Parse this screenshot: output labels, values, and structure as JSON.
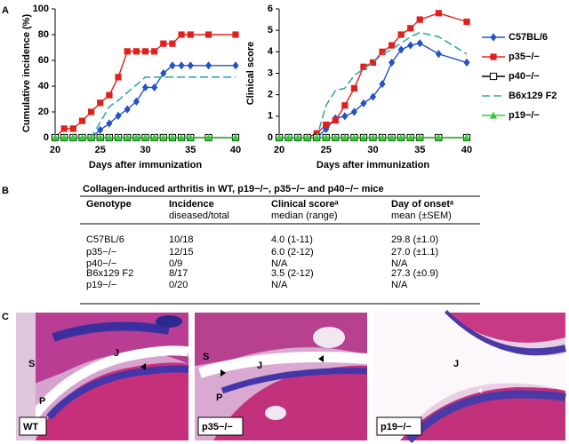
{
  "chart_data": [
    {
      "type": "line",
      "ylabel": "Cumulative incidence (%)",
      "xlabel": "Days after immunization",
      "x": [
        20,
        21,
        22,
        23,
        24,
        25,
        26,
        27,
        28,
        29,
        30,
        31,
        32,
        33,
        34,
        35,
        37,
        40
      ],
      "xlim": [
        20,
        40
      ],
      "xticks": [
        20,
        25,
        30,
        35,
        40
      ],
      "ylim": [
        0,
        100
      ],
      "yticks": [
        0,
        20,
        40,
        60,
        80,
        100
      ],
      "series": [
        {
          "name": "C57BL/6",
          "color": "#2452c8",
          "marker": "diamond",
          "values": [
            0,
            0,
            0,
            0,
            0,
            6,
            11,
            17,
            22,
            28,
            39,
            39,
            50,
            56,
            56,
            56,
            56,
            56
          ]
        },
        {
          "name": "p35−/−",
          "color": "#e0201b",
          "marker": "square",
          "values": [
            0,
            7,
            7,
            13,
            20,
            27,
            33,
            47,
            67,
            67,
            67,
            67,
            73,
            73,
            80,
            80,
            80,
            80
          ]
        },
        {
          "name": "p40−/−",
          "color": "#000000",
          "marker": "open-square",
          "values": [
            0,
            0,
            0,
            0,
            0,
            0,
            0,
            0,
            0,
            0,
            0,
            0,
            0,
            0,
            0,
            0,
            0,
            0
          ]
        },
        {
          "name": "B6x129 F2",
          "color": "#3aa6a6",
          "dash": true,
          "values": [
            0,
            0,
            0,
            0,
            0,
            12,
            24,
            29,
            35,
            41,
            47,
            47,
            47,
            47,
            47,
            47,
            47,
            47
          ]
        },
        {
          "name": "p19−/−",
          "color": "#33cc33",
          "marker": "triangle",
          "values": [
            0,
            0,
            0,
            0,
            0,
            0,
            0,
            0,
            0,
            0,
            0,
            0,
            0,
            0,
            0,
            0,
            0,
            0
          ]
        }
      ]
    },
    {
      "type": "line",
      "ylabel": "Clinical score",
      "xlabel": "Days after immunization",
      "x": [
        20,
        21,
        22,
        23,
        24,
        25,
        26,
        27,
        28,
        29,
        30,
        31,
        32,
        33,
        34,
        35,
        37,
        40
      ],
      "xlim": [
        20,
        40
      ],
      "xticks": [
        20,
        25,
        30,
        35,
        40
      ],
      "ylim": [
        0,
        6
      ],
      "yticks": [
        0,
        1,
        2,
        3,
        4,
        5,
        6
      ],
      "series": [
        {
          "color": "#2452c8",
          "marker": "diamond",
          "values": [
            0,
            0,
            0,
            0,
            0,
            0.4,
            0.9,
            1.0,
            1.2,
            1.6,
            1.9,
            2.5,
            3.5,
            4.1,
            4.3,
            4.4,
            3.9,
            3.5
          ]
        },
        {
          "color": "#e0201b",
          "marker": "square",
          "values": [
            0,
            0,
            0,
            0,
            0.2,
            0.6,
            0.8,
            1.5,
            2.3,
            3.3,
            3.5,
            4.0,
            4.3,
            4.8,
            5.1,
            5.5,
            5.8,
            5.4
          ]
        },
        {
          "color": "#000000",
          "marker": "open-square",
          "values": [
            0,
            0,
            0,
            0,
            0,
            0,
            0,
            0,
            0,
            0,
            0,
            0,
            0,
            0,
            0,
            0,
            0,
            0
          ]
        },
        {
          "color": "#3aa6a6",
          "dash": true,
          "values": [
            0,
            0,
            0,
            0,
            0,
            1.5,
            2.2,
            2.3,
            2.9,
            3.2,
            3.5,
            3.9,
            4.1,
            4.4,
            4.7,
            4.9,
            4.7,
            3.9
          ]
        },
        {
          "color": "#33cc33",
          "marker": "triangle",
          "values": [
            0,
            0,
            0,
            0,
            0,
            0,
            0,
            0,
            0,
            0,
            0,
            0,
            0,
            0,
            0,
            0,
            0,
            0
          ]
        }
      ]
    }
  ],
  "panels": [
    "A",
    "B",
    "C"
  ],
  "table": {
    "title": "Collagen-induced arthritis in WT, p19−/−, p35−/− and p40−/− mice",
    "columns": [
      [
        "Genotype"
      ],
      [
        "Incidence",
        "diseased/total"
      ],
      [
        "Clinical scoreᵃ",
        "median (range)"
      ],
      [
        "Day of onsetᵃ",
        "mean (±SEM)"
      ]
    ],
    "rows": [
      [
        "C57BL/6",
        "10/18",
        "4.0 (1-11)",
        "29.8 (±1.0)"
      ],
      [
        "p35−/−",
        "12/15",
        "6.0 (2-12)",
        "27.0 (±1.1)"
      ],
      [
        "p40−/−",
        "0/9",
        "N/A",
        "N/A"
      ],
      [
        "B6x129 F2",
        "8/17",
        "3.5 (2-12)",
        "27.3 (±0.9)"
      ],
      [
        "p19−/−",
        "0/20",
        "N/A",
        "N/A"
      ]
    ]
  },
  "images": [
    {
      "label": "WT",
      "marks": [
        "S",
        "J",
        "P"
      ]
    },
    {
      "label": "p35−/−",
      "marks": [
        "S",
        "J",
        "P"
      ]
    },
    {
      "label": "p19−/−",
      "marks": [
        "J"
      ]
    }
  ]
}
